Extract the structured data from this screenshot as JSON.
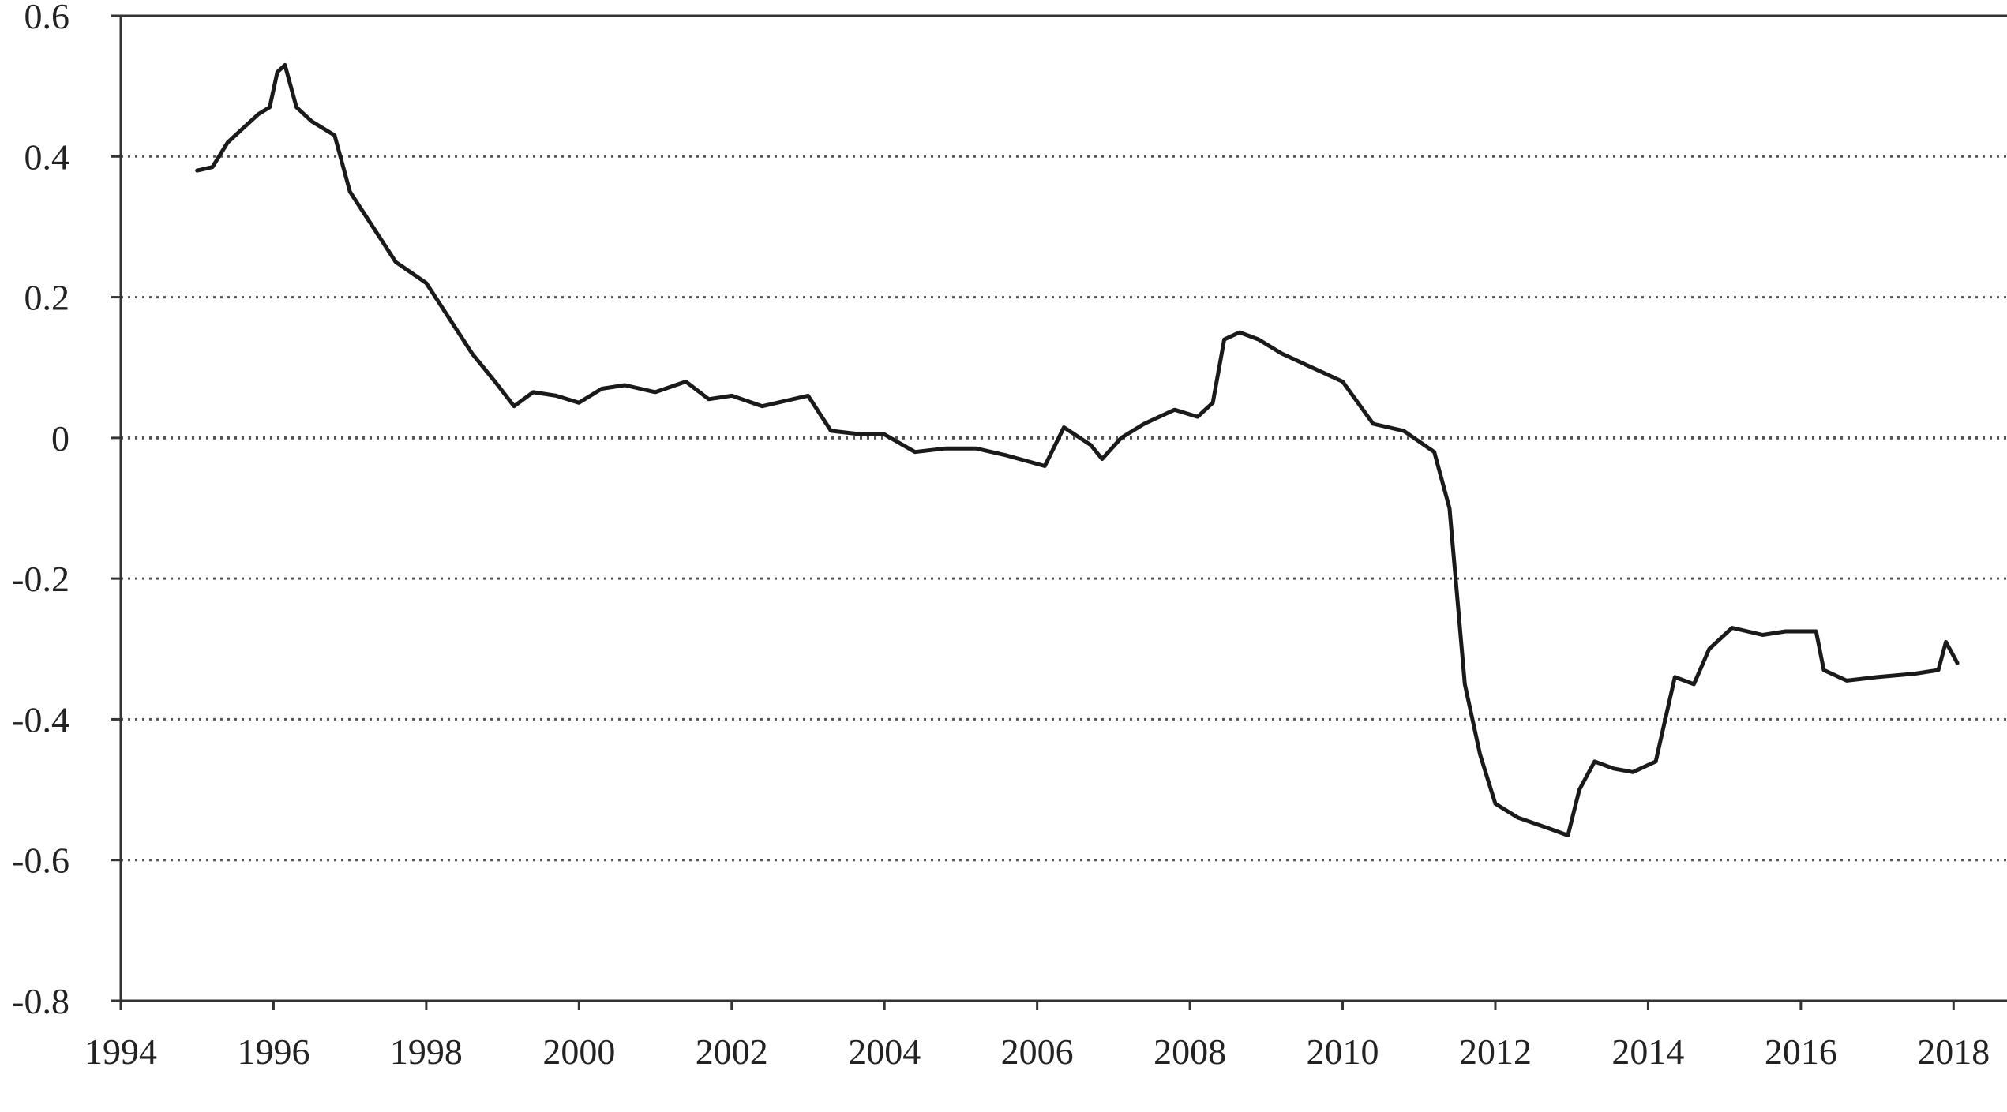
{
  "chart_data": {
    "type": "line",
    "title": "",
    "xlabel": "",
    "ylabel": "",
    "xlim": [
      1994,
      2018.7
    ],
    "ylim": [
      -0.8,
      0.6
    ],
    "x_ticks": [
      1994,
      1996,
      1998,
      2000,
      2002,
      2004,
      2006,
      2008,
      2010,
      2012,
      2014,
      2016,
      2018
    ],
    "x_tick_labels": [
      "1994",
      "1996",
      "1998",
      "2000",
      "2002",
      "2004",
      "2006",
      "2008",
      "2010",
      "2012",
      "2014",
      "2016",
      "2018"
    ],
    "y_ticks": [
      0.6,
      0.4,
      0.2,
      0,
      -0.2,
      -0.4,
      -0.6,
      -0.8
    ],
    "y_tick_labels": [
      "0.6",
      "0.4",
      "0.2",
      "0",
      "-0.2",
      "-0.4",
      "-0.6",
      "-0.8"
    ],
    "grid": "horizontal dotted",
    "legend": "none",
    "colors": {
      "line": "#1a1a1a",
      "axis": "#333333",
      "grid": "#555555"
    },
    "series": [
      {
        "x": [
          1995.0,
          1995.2,
          1995.4,
          1995.6,
          1995.8,
          1995.95,
          1996.05,
          1996.15,
          1996.3,
          1996.5,
          1996.8,
          1997.0,
          1997.3,
          1997.6,
          1998.0,
          1998.3,
          1998.6,
          1998.9,
          1999.15,
          1999.4,
          1999.7,
          2000.0,
          2000.3,
          2000.6,
          2001.0,
          2001.4,
          2001.7,
          2002.0,
          2002.4,
          2002.8,
          2003.0,
          2003.3,
          2003.7,
          2004.0,
          2004.4,
          2004.8,
          2005.2,
          2005.6,
          2006.1,
          2006.35,
          2006.7,
          2006.85,
          2007.1,
          2007.4,
          2007.8,
          2008.1,
          2008.3,
          2008.45,
          2008.65,
          2008.9,
          2009.2,
          2009.6,
          2010.0,
          2010.4,
          2010.8,
          2011.2,
          2011.4,
          2011.6,
          2011.8,
          2012.0,
          2012.3,
          2012.7,
          2012.95,
          2013.1,
          2013.3,
          2013.55,
          2013.8,
          2014.1,
          2014.35,
          2014.6,
          2014.8,
          2015.1,
          2015.5,
          2015.8,
          2016.2,
          2016.3,
          2016.6,
          2017.0,
          2017.5,
          2017.8,
          2017.9,
          2018.0,
          2018.05
        ],
        "values": [
          0.38,
          0.385,
          0.42,
          0.44,
          0.46,
          0.47,
          0.52,
          0.53,
          0.47,
          0.45,
          0.43,
          0.35,
          0.3,
          0.25,
          0.22,
          0.17,
          0.12,
          0.08,
          0.045,
          0.065,
          0.06,
          0.05,
          0.07,
          0.075,
          0.065,
          0.08,
          0.055,
          0.06,
          0.045,
          0.055,
          0.06,
          0.01,
          0.005,
          0.005,
          -0.02,
          -0.015,
          -0.015,
          -0.025,
          -0.04,
          0.015,
          -0.01,
          -0.03,
          0.0,
          0.02,
          0.04,
          0.03,
          0.05,
          0.14,
          0.15,
          0.14,
          0.12,
          0.1,
          0.08,
          0.02,
          0.01,
          -0.02,
          -0.1,
          -0.35,
          -0.45,
          -0.52,
          -0.54,
          -0.555,
          -0.565,
          -0.5,
          -0.46,
          -0.47,
          -0.475,
          -0.46,
          -0.34,
          -0.35,
          -0.3,
          -0.27,
          -0.28,
          -0.275,
          -0.275,
          -0.33,
          -0.345,
          -0.34,
          -0.335,
          -0.33,
          -0.29,
          -0.31,
          -0.32
        ]
      }
    ]
  }
}
